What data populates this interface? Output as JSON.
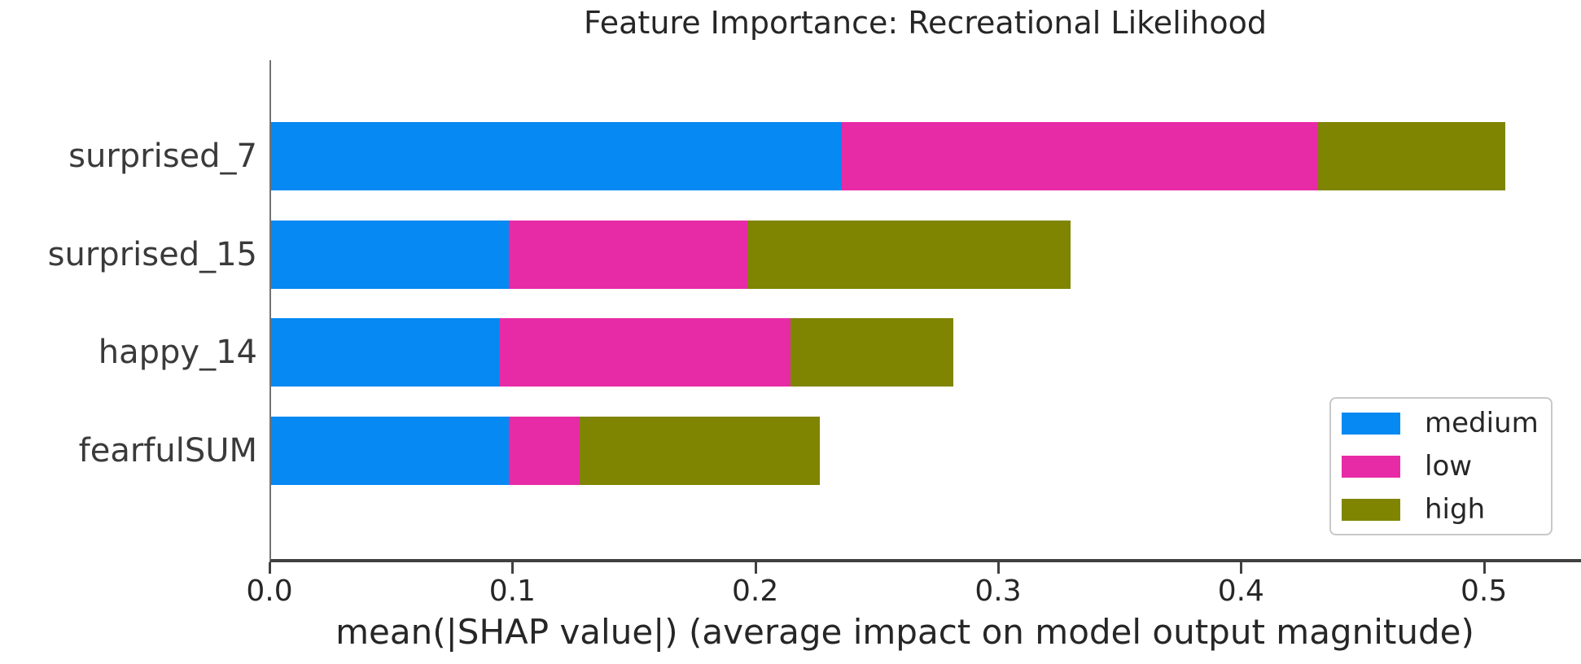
{
  "chart_data": {
    "type": "bar",
    "orientation": "horizontal",
    "stacked": true,
    "title": "Feature Importance: Recreational Likelihood",
    "xlabel": "mean(|SHAP value|) (average impact on model output magnitude)",
    "ylabel": "",
    "categories": [
      "surprised_7",
      "surprised_15",
      "happy_14",
      "fearfulSUM"
    ],
    "series": [
      {
        "name": "medium",
        "color": "#0689f2",
        "values": [
          0.235,
          0.098,
          0.094,
          0.098
        ]
      },
      {
        "name": "low",
        "color": "#e72ba6",
        "values": [
          0.196,
          0.098,
          0.12,
          0.029
        ]
      },
      {
        "name": "high",
        "color": "#7f8500",
        "values": [
          0.077,
          0.133,
          0.067,
          0.099
        ]
      }
    ],
    "totals": [
      0.508,
      0.329,
      0.281,
      0.226
    ],
    "xlim": [
      0,
      0.54
    ],
    "xticks": [
      "0.0",
      "0.1",
      "0.2",
      "0.3",
      "0.4",
      "0.5"
    ],
    "xtick_values": [
      0.0,
      0.1,
      0.2,
      0.3,
      0.4,
      0.5
    ],
    "grid": false,
    "legend": {
      "position": "lower right",
      "entries": [
        "medium",
        "low",
        "high"
      ]
    }
  },
  "style": {
    "background": "#ffffff",
    "axis_color": "#404040",
    "spine_color": "#737373",
    "text_color": "#262626"
  }
}
